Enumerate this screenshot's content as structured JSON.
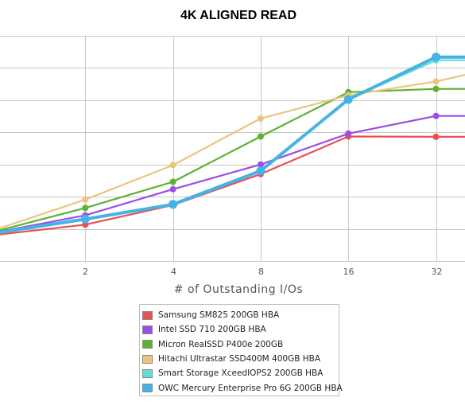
{
  "chart_data": {
    "type": "line",
    "title": "4K ALIGNED READ",
    "xlabel": "# of Outstanding I/Os",
    "ylabel": "",
    "x_scale": "log2",
    "x": [
      1,
      2,
      4,
      8,
      16,
      32,
      64
    ],
    "x_tick_labels": [
      "2",
      "4",
      "8",
      "16",
      "32"
    ],
    "ylim": [
      0,
      70000
    ],
    "y_tick_values": [
      0,
      10000,
      20000,
      30000,
      40000,
      50000,
      60000,
      70000
    ],
    "grid": true,
    "legend_position": "bottom",
    "series": [
      {
        "name": "Samsung SM825 200GB HBA",
        "color": "#e8514f",
        "values": [
          8200,
          11300,
          17400,
          27000,
          38700,
          38600,
          38600
        ]
      },
      {
        "name": "Intel SSD 710 200GB HBA",
        "color": "#9b4de8",
        "values": [
          9000,
          14200,
          22300,
          30000,
          39600,
          45100,
          45100
        ]
      },
      {
        "name": "Micron RealSSD P400e 200GB",
        "color": "#5cb230",
        "values": [
          9400,
          16500,
          24600,
          38700,
          52500,
          53500,
          53500
        ]
      },
      {
        "name": "Hitachi Ultrastar SSD400M 400GB HBA",
        "color": "#ecc47f",
        "values": [
          10000,
          19100,
          29800,
          44300,
          51500,
          55800,
          62000
        ]
      },
      {
        "name": "Smart Storage XceedIOPS2 200GB HBA",
        "color": "#5ee0d6",
        "values": [
          8800,
          13000,
          17600,
          28000,
          50200,
          62400,
          62400
        ]
      },
      {
        "name": "OWC Mercury Enterprise Pro 6G 200GB HBA",
        "color": "#45b3e6",
        "values": [
          8800,
          13000,
          17600,
          28000,
          50200,
          63400,
          63400
        ]
      }
    ]
  }
}
